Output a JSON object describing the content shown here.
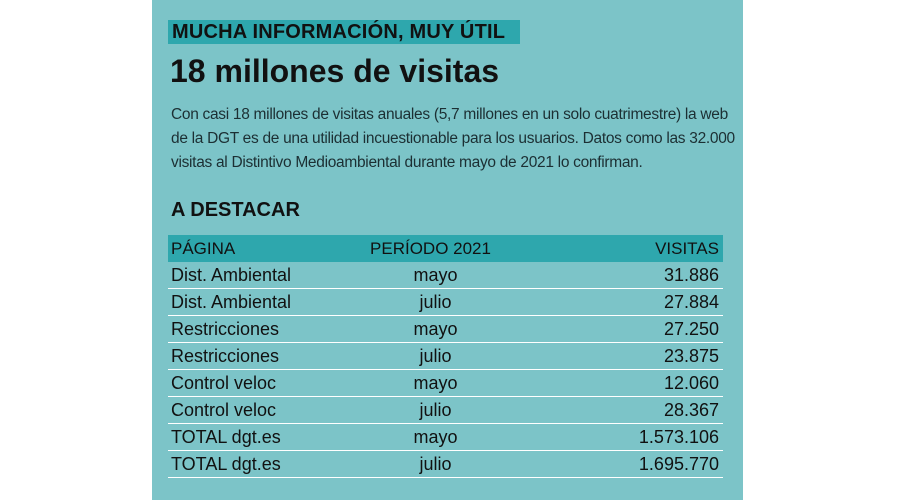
{
  "kicker": "MUCHA INFORMACIÓN, MUY ÚTIL",
  "headline": "18 millones de visitas",
  "intro": "Con casi 18 millones de visitas anuales (5,7 millones en un solo cuatrimestre) la web de la DGT es de una utilidad incuestionable para los usuarios. Datos como las 32.000 visitas al Distintivo Medioambiental durante mayo de 2021 lo confirman.",
  "section_title": "A DESTACAR",
  "table": {
    "headers": {
      "page": "PÁGINA",
      "period": "PERÍODO 2021",
      "visits": "VISITAS"
    },
    "rows": [
      {
        "page": "Dist. Ambiental",
        "period": "mayo",
        "visits": "31.886"
      },
      {
        "page": "Dist. Ambiental",
        "period": "julio",
        "visits": "27.884"
      },
      {
        "page": "Restricciones",
        "period": "mayo",
        "visits": "27.250"
      },
      {
        "page": "Restricciones",
        "period": "julio",
        "visits": "23.875"
      },
      {
        "page": "Control veloc",
        "period": "mayo",
        "visits": "12.060"
      },
      {
        "page": "Control veloc",
        "period": "julio",
        "visits": "28.367"
      },
      {
        "page": "TOTAL dgt.es",
        "period": "mayo",
        "visits": "1.573.106"
      },
      {
        "page": "TOTAL dgt.es",
        "period": "julio",
        "visits": "1.695.770"
      }
    ]
  },
  "colors": {
    "panel_background": "#7cc4c8",
    "header_band": "#2ea7ad",
    "row_divider": "#ffffff",
    "text": "#111111"
  }
}
